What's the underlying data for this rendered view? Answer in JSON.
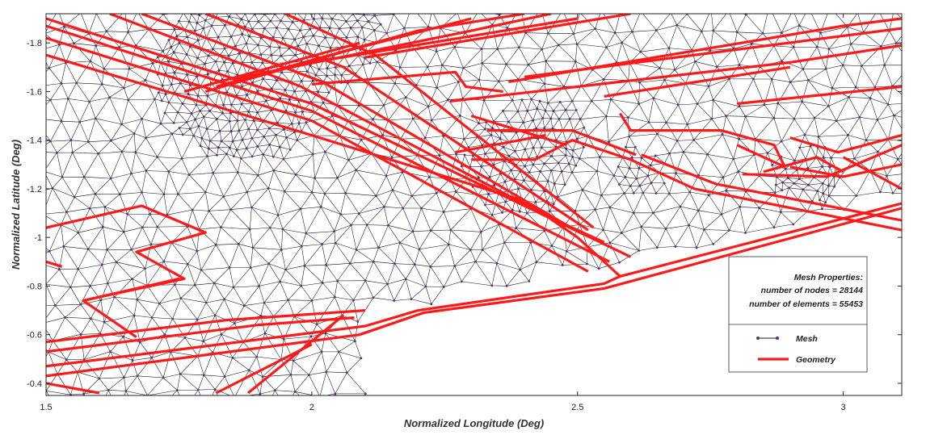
{
  "chart_data": {
    "type": "line",
    "xlabel": "Normalized Longitude (Deg)",
    "ylabel": "Normalized Latitude (Deg)",
    "xlim": [
      1.5,
      3.11
    ],
    "ylim": [
      -1.92,
      -0.35
    ],
    "y_reversed": true,
    "x_ticks": [
      {
        "value": 1.5,
        "label": "1.5"
      },
      {
        "value": 2,
        "label": "2"
      },
      {
        "value": 2.5,
        "label": "2.5"
      },
      {
        "value": 3,
        "label": "3"
      }
    ],
    "y_ticks": [
      {
        "value": -1.8,
        "label": "-1.8"
      },
      {
        "value": -1.6,
        "label": "-1.6"
      },
      {
        "value": -1.4,
        "label": "-1.4"
      },
      {
        "value": -1.2,
        "label": "-1.2"
      },
      {
        "value": -1,
        "label": "-1"
      },
      {
        "value": -0.8,
        "label": "-0.8"
      },
      {
        "value": -0.6,
        "label": "-0.6"
      },
      {
        "value": -0.4,
        "label": "-0.4"
      }
    ],
    "grid": false,
    "legend_position": "bottom-right",
    "annotation": {
      "title": "Mesh Properties:",
      "lines": [
        "number of nodes = 28144",
        "number of elements = 55453"
      ]
    },
    "colors": {
      "mesh": "#111111",
      "mesh_node": "#5b2a86",
      "geometry": "#ff1a1a"
    },
    "series": [
      {
        "name": "Mesh",
        "kind": "triangulated-mesh"
      },
      {
        "name": "Geometry",
        "polylines": [
          [
            [
              1.5,
              -0.47
            ],
            [
              2.1,
              -0.635
            ],
            [
              2.2,
              -0.7
            ],
            [
              2.55,
              -0.81
            ],
            [
              2.58,
              -0.84
            ],
            [
              3.11,
              -1.14
            ]
          ],
          [
            [
              1.5,
              -0.43
            ],
            [
              2.09,
              -0.6
            ],
            [
              2.21,
              -0.69
            ],
            [
              2.55,
              -0.79
            ],
            [
              3.11,
              -1.12
            ]
          ],
          [
            [
              1.5,
              -0.53
            ],
            [
              1.9,
              -0.64
            ],
            [
              2.08,
              -0.67
            ]
          ],
          [
            [
              1.5,
              -0.57
            ],
            [
              1.84,
              -0.66
            ],
            [
              2.1,
              -0.7
            ]
          ],
          [
            [
              1.5,
              -0.4
            ],
            [
              1.6,
              -0.36
            ]
          ],
          [
            [
              1.88,
              -0.36
            ],
            [
              2.06,
              -0.68
            ]
          ],
          [
            [
              1.82,
              -0.36
            ],
            [
              2.0,
              -0.56
            ]
          ],
          [
            [
              1.5,
              -1.75
            ],
            [
              2.0,
              -1.42
            ],
            [
              2.4,
              -1.15
            ],
            [
              2.5,
              -1.0
            ],
            [
              2.58,
              -0.84
            ]
          ],
          [
            [
              1.5,
              -1.82
            ],
            [
              2.0,
              -1.48
            ],
            [
              2.52,
              -0.86
            ]
          ],
          [
            [
              1.5,
              -1.87
            ],
            [
              2.0,
              -1.52
            ],
            [
              2.56,
              -0.9
            ]
          ],
          [
            [
              1.5,
              -1.9
            ],
            [
              2.0,
              -1.55
            ],
            [
              2.6,
              -0.92
            ]
          ],
          [
            [
              1.62,
              -1.92
            ],
            [
              1.98,
              -1.62
            ],
            [
              2.45,
              -1.08
            ],
            [
              2.55,
              -0.98
            ]
          ],
          [
            [
              1.68,
              -1.92
            ],
            [
              2.02,
              -1.64
            ],
            [
              2.48,
              -1.05
            ]
          ],
          [
            [
              1.8,
              -1.92
            ],
            [
              2.06,
              -1.7
            ],
            [
              2.52,
              -1.03
            ]
          ],
          [
            [
              1.95,
              -1.92
            ],
            [
              2.12,
              -1.75
            ],
            [
              2.53,
              -1.04
            ]
          ],
          [
            [
              1.8,
              -1.6
            ],
            [
              2.07,
              -1.77
            ],
            [
              2.3,
              -1.9
            ]
          ],
          [
            [
              1.82,
              -1.62
            ],
            [
              2.2,
              -1.85
            ],
            [
              2.4,
              -1.92
            ]
          ],
          [
            [
              1.76,
              -1.6
            ],
            [
              2.09,
              -1.8
            ]
          ],
          [
            [
              1.85,
              -1.65
            ],
            [
              2.3,
              -1.85
            ],
            [
              2.45,
              -1.92
            ]
          ],
          [
            [
              2.0,
              -1.72
            ],
            [
              2.5,
              -1.9
            ]
          ],
          [
            [
              2.1,
              -1.74
            ],
            [
              2.6,
              -1.92
            ]
          ],
          [
            [
              2.0,
              -1.63
            ],
            [
              2.27,
              -1.68
            ],
            [
              2.29,
              -1.62
            ],
            [
              2.36,
              -1.6
            ]
          ],
          [
            [
              2.26,
              -1.56
            ],
            [
              2.9,
              -1.72
            ],
            [
              3.11,
              -1.79
            ]
          ],
          [
            [
              2.37,
              -1.64
            ],
            [
              3.0,
              -1.87
            ],
            [
              3.11,
              -1.9
            ]
          ],
          [
            [
              2.4,
              -1.66
            ],
            [
              3.11,
              -1.86
            ]
          ],
          [
            [
              2.3,
              -1.32
            ],
            [
              2.42,
              -1.32
            ],
            [
              2.49,
              -1.4
            ],
            [
              2.6,
              -1.32
            ],
            [
              2.72,
              -1.2
            ],
            [
              3.11,
              -1.03
            ]
          ],
          [
            [
              2.33,
              -1.44
            ],
            [
              2.49,
              -1.44
            ],
            [
              2.61,
              -1.34
            ]
          ],
          [
            [
              2.3,
              -1.5
            ],
            [
              2.48,
              -1.38
            ]
          ],
          [
            [
              2.27,
              -1.35
            ],
            [
              2.44,
              -1.42
            ]
          ],
          [
            [
              2.55,
              -1.58
            ],
            [
              2.9,
              -1.7
            ]
          ],
          [
            [
              2.58,
              -1.51
            ],
            [
              2.6,
              -1.44
            ],
            [
              2.77,
              -1.44
            ],
            [
              2.87,
              -1.38
            ],
            [
              2.89,
              -1.29
            ]
          ],
          [
            [
              2.62,
              -1.34
            ],
            [
              2.76,
              -1.22
            ],
            [
              3.11,
              -1.07
            ]
          ],
          [
            [
              2.81,
              -1.26
            ],
            [
              2.97,
              -1.25
            ],
            [
              3.11,
              -1.38
            ]
          ],
          [
            [
              2.8,
              -1.38
            ],
            [
              2.89,
              -1.29
            ]
          ],
          [
            [
              2.8,
              -1.55
            ],
            [
              3.11,
              -1.62
            ]
          ],
          [
            [
              2.9,
              -1.41
            ],
            [
              2.99,
              -1.35
            ],
            [
              3.11,
              -1.42
            ]
          ],
          [
            [
              2.9,
              -1.29
            ],
            [
              3.0,
              -1.25
            ],
            [
              3.11,
              -1.3
            ]
          ],
          [
            [
              2.85,
              -1.27
            ],
            [
              2.95,
              -1.33
            ],
            [
              3.0,
              -1.27
            ]
          ],
          [
            [
              3.0,
              -1.33
            ],
            [
              3.11,
              -1.2
            ]
          ],
          [
            [
              1.5,
              -1.04
            ],
            [
              1.68,
              -1.13
            ],
            [
              1.8,
              -1.02
            ],
            [
              1.67,
              -0.94
            ],
            [
              1.76,
              -0.83
            ],
            [
              1.57,
              -0.74
            ],
            [
              1.67,
              -0.59
            ]
          ],
          [
            [
              1.5,
              -0.9
            ],
            [
              1.53,
              -0.88
            ]
          ],
          [
            [
              1.57,
              -0.74
            ],
            [
              1.75,
              -0.83
            ]
          ]
        ]
      }
    ]
  }
}
